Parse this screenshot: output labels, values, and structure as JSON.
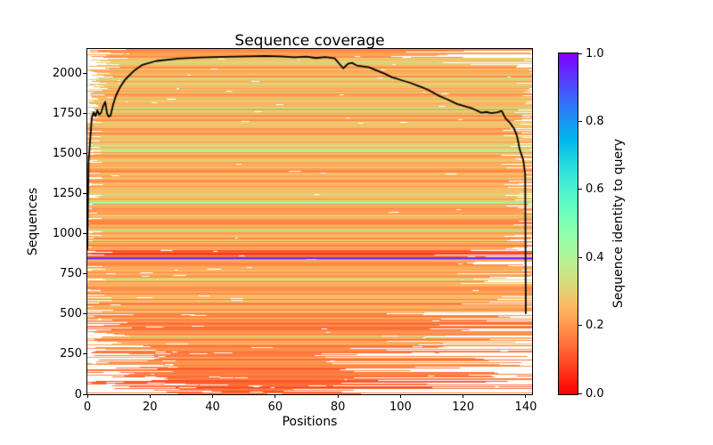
{
  "figure": {
    "title": "Sequence coverage",
    "background_color": "#ffffff",
    "spine_color": "#000000"
  },
  "chart_data": {
    "type": "heatmap",
    "title": "Sequence coverage",
    "xlabel": "Positions",
    "ylabel": "Sequences",
    "xlim": [
      0,
      142
    ],
    "ylim": [
      0,
      2155
    ],
    "grid": false,
    "x_tick_labels": [
      "0",
      "20",
      "40",
      "60",
      "80",
      "100",
      "120",
      "140"
    ],
    "y_tick_labels": [
      "0",
      "250",
      "500",
      "750",
      "1000",
      "1250",
      "1500",
      "1750",
      "2000"
    ],
    "colorbar": {
      "label": "Sequence identity to query",
      "tick_labels": [
        "0.0",
        "0.2",
        "0.4",
        "0.6",
        "0.8",
        "1.0"
      ],
      "colormap": "rainbow_r",
      "color_at_0": "#ff0000",
      "color_at_0_2": "#ff964f",
      "color_at_0_4": "#b2f296",
      "color_at_0_6": "#4cf2ce",
      "color_at_0_8": "#1996f2",
      "color_at_1": "#7f00ff"
    },
    "coverage_line": {
      "name": "coverage-per-position",
      "color": "#000000",
      "points": [
        [
          0,
          905
        ],
        [
          0.4,
          1450
        ],
        [
          0.8,
          1560
        ],
        [
          1.4,
          1722
        ],
        [
          2.0,
          1760
        ],
        [
          2.6,
          1735
        ],
        [
          3.2,
          1772
        ],
        [
          3.8,
          1745
        ],
        [
          4.4,
          1758
        ],
        [
          5.0,
          1795
        ],
        [
          5.7,
          1825
        ],
        [
          6.3,
          1752
        ],
        [
          6.8,
          1733
        ],
        [
          7.4,
          1738
        ],
        [
          8.2,
          1805
        ],
        [
          9.1,
          1862
        ],
        [
          10.5,
          1918
        ],
        [
          12,
          1962
        ],
        [
          14.8,
          2017
        ],
        [
          17.6,
          2056
        ],
        [
          22,
          2080
        ],
        [
          29,
          2095
        ],
        [
          36,
          2101
        ],
        [
          43,
          2106
        ],
        [
          50,
          2108
        ],
        [
          57,
          2111
        ],
        [
          62,
          2109
        ],
        [
          66,
          2103
        ],
        [
          70,
          2107
        ],
        [
          73,
          2098
        ],
        [
          76,
          2104
        ],
        [
          79,
          2096
        ],
        [
          81.7,
          2034
        ],
        [
          83.2,
          2062
        ],
        [
          84.5,
          2068
        ],
        [
          86,
          2052
        ],
        [
          88,
          2046
        ],
        [
          90,
          2040
        ],
        [
          92,
          2024
        ],
        [
          95,
          2000
        ],
        [
          97.3,
          1978
        ],
        [
          100,
          1962
        ],
        [
          103,
          1944
        ],
        [
          106.7,
          1917
        ],
        [
          109,
          1898
        ],
        [
          112.4,
          1861
        ],
        [
          115,
          1840
        ],
        [
          118.1,
          1811
        ],
        [
          120.5,
          1797
        ],
        [
          123,
          1783
        ],
        [
          125.8,
          1757
        ],
        [
          127.5,
          1762
        ],
        [
          129,
          1754
        ],
        [
          131,
          1760
        ],
        [
          132.3,
          1768
        ],
        [
          133.5,
          1722
        ],
        [
          134.9,
          1695
        ],
        [
          136.3,
          1656
        ],
        [
          137.2,
          1611
        ],
        [
          138,
          1533
        ],
        [
          139.2,
          1460
        ],
        [
          139.8,
          1372
        ],
        [
          140,
          505
        ]
      ]
    },
    "msa": {
      "seed": 7,
      "n_sequences": 2155,
      "n_positions": 142,
      "bands": [
        {
          "min": 0,
          "max": 60,
          "id": [
            0.07,
            0.16
          ],
          "start": [
            6,
            40
          ],
          "end": [
            55,
            120
          ],
          "full": 0.05,
          "holes": 1.6,
          "hole_w": [
            3,
            26
          ],
          "green": 0
        },
        {
          "min": 60,
          "max": 180,
          "id": [
            0.1,
            0.2
          ],
          "start": [
            0,
            38
          ],
          "end": [
            60,
            142
          ],
          "full": 0.22,
          "holes": 1.4,
          "hole_w": [
            3,
            30
          ],
          "green": 0
        },
        {
          "min": 180,
          "max": 320,
          "id": [
            0.12,
            0.22
          ],
          "start": [
            0,
            26
          ],
          "end": [
            70,
            142
          ],
          "full": 0.38,
          "holes": 1.1,
          "hole_w": [
            3,
            28
          ],
          "green": 0.01
        },
        {
          "min": 320,
          "max": 520,
          "id": [
            0.13,
            0.25
          ],
          "start": [
            0,
            15
          ],
          "end": [
            95,
            142
          ],
          "full": 0.52,
          "holes": 0.9,
          "hole_w": [
            2,
            22
          ],
          "green": 0.02
        },
        {
          "min": 520,
          "max": 845,
          "id": [
            0.15,
            0.29
          ],
          "start": [
            0,
            9
          ],
          "end": [
            118,
            142
          ],
          "full": 0.68,
          "holes": 0.7,
          "hole_w": [
            2,
            18
          ],
          "green": 0.04
        },
        {
          "min": 845,
          "max": 905,
          "id": [
            0.07,
            0.17
          ],
          "start": [
            0,
            10
          ],
          "end": [
            100,
            142
          ],
          "full": 0.5,
          "holes": 1.0,
          "hole_w": [
            3,
            22
          ],
          "green": 0
        },
        {
          "min": 905,
          "max": 1700,
          "id": [
            0.16,
            0.31
          ],
          "start": [
            0,
            5
          ],
          "end": [
            132,
            142
          ],
          "full": 0.72,
          "holes": 0.55,
          "hole_w": [
            2,
            14
          ],
          "green": 0.07
        },
        {
          "min": 1700,
          "max": 2155,
          "id": [
            0.17,
            0.32
          ],
          "wedge": true,
          "holes": 0.8,
          "hole_w": [
            2,
            10
          ],
          "green": 0.06
        }
      ],
      "special_rows": [
        {
          "seq": 875,
          "identity": 0.04,
          "start": 1.5,
          "end": 142,
          "thick": 1
        },
        {
          "seq": 853,
          "identity": 0.8,
          "start": 0,
          "end": 142,
          "thick": 1
        },
        {
          "seq": 848,
          "identity": 0.97,
          "start": 0,
          "end": 142,
          "thick": 2
        }
      ]
    }
  }
}
